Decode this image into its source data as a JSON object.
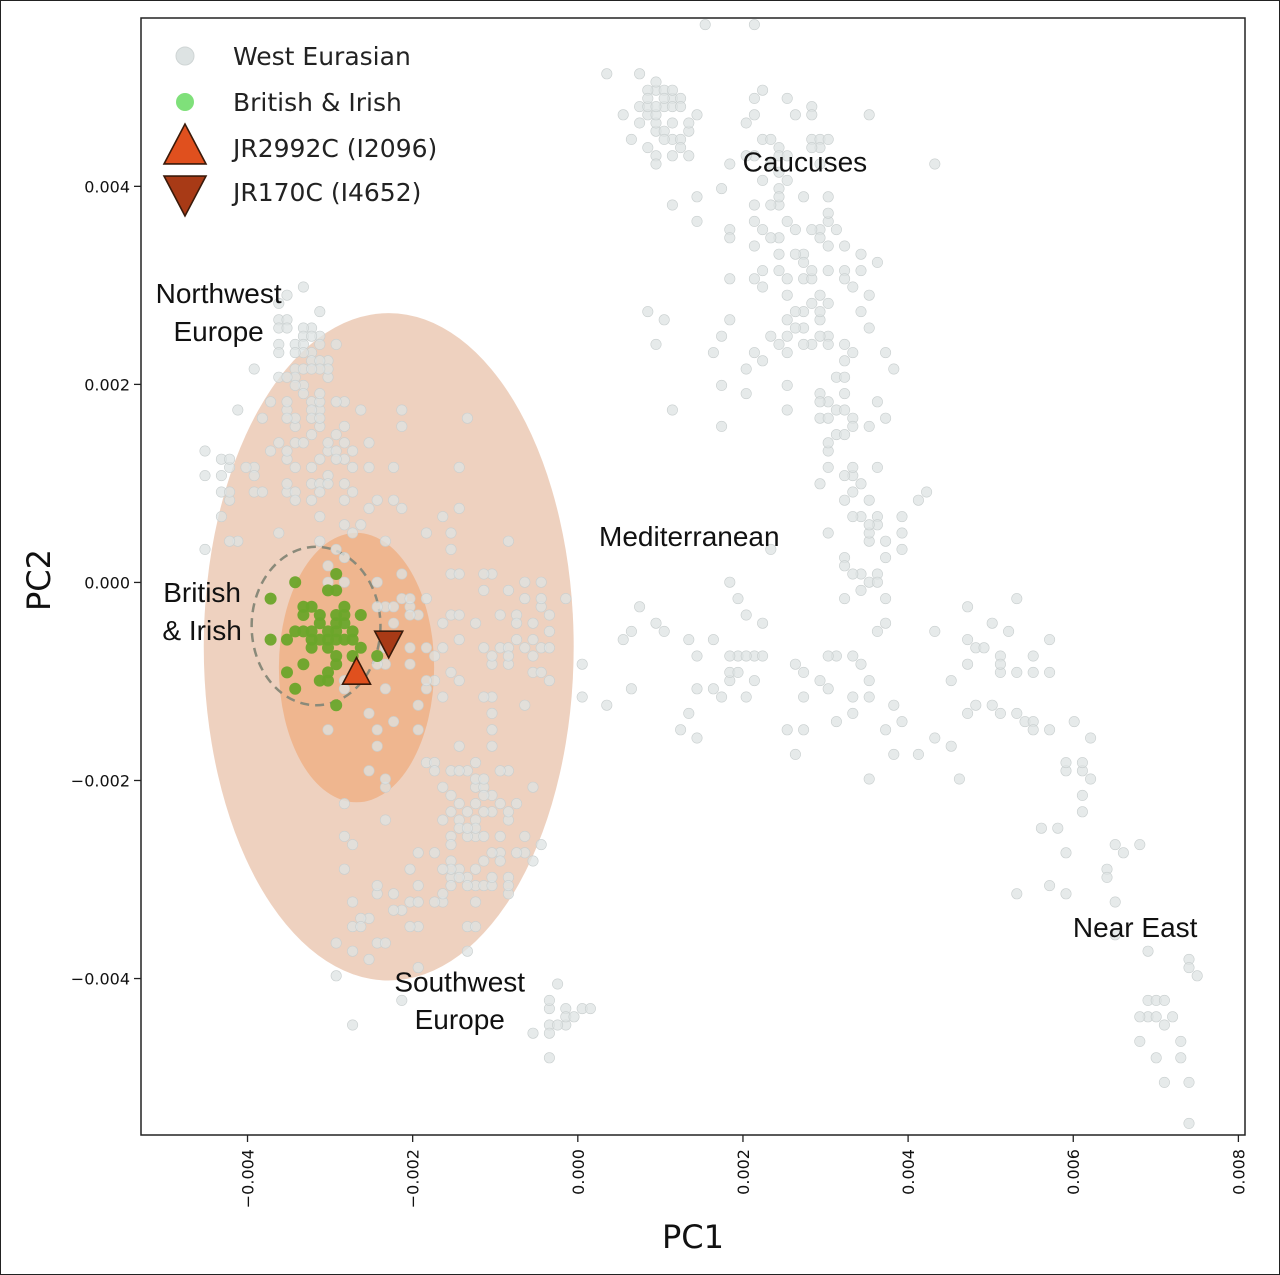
{
  "chart_data": {
    "type": "scatter",
    "xlabel": "PC1",
    "ylabel": "PC2",
    "xlim": [
      -0.00529,
      0.00808
    ],
    "ylim": [
      -0.00558,
      0.0057
    ],
    "xticks": [
      {
        "value": -0.004,
        "label": "−0.004"
      },
      {
        "value": -0.002,
        "label": "−0.002"
      },
      {
        "value": 0.0,
        "label": "0.000"
      },
      {
        "value": 0.002,
        "label": "0.002"
      },
      {
        "value": 0.004,
        "label": "0.004"
      },
      {
        "value": 0.006,
        "label": "0.006"
      },
      {
        "value": 0.008,
        "label": "0.008"
      }
    ],
    "yticks": [
      {
        "value": 0.004,
        "label": "0.004"
      },
      {
        "value": 0.002,
        "label": "0.002"
      },
      {
        "value": 0.0,
        "label": "0.000"
      },
      {
        "value": -0.002,
        "label": "−0.002"
      },
      {
        "value": -0.004,
        "label": "−0.004"
      }
    ],
    "grid": false,
    "legend_position": "top-left",
    "legend": [
      {
        "label": "West Eurasian",
        "marker": "circle",
        "color": "#dde3e3"
      },
      {
        "label": "British & Irish",
        "marker": "circle",
        "color": "#7fe07a"
      },
      {
        "label": "JR2992C (I2096)",
        "marker": "triangle-up",
        "color": "#e0501e"
      },
      {
        "label": "JR170C (I4652)",
        "marker": "triangle-down",
        "color": "#a83a16"
      }
    ],
    "annotations": [
      {
        "text": "Caucuses",
        "x": 0.00275,
        "y": 0.00415
      },
      {
        "text": "Northwest",
        "x": -0.00435,
        "y": 0.00282
      },
      {
        "text": "Europe",
        "x": -0.00435,
        "y": 0.00244
      },
      {
        "text": "Mediterranean",
        "x": 0.00135,
        "y": 0.00037
      },
      {
        "text": "British",
        "x": -0.00455,
        "y": -0.0002
      },
      {
        "text": "& Irish",
        "x": -0.00455,
        "y": -0.00058
      },
      {
        "text": "Near East",
        "x": 0.00675,
        "y": -0.00358
      },
      {
        "text": "Southwest",
        "x": -0.00143,
        "y": -0.00413
      },
      {
        "text": "Europe",
        "x": -0.00143,
        "y": -0.00451
      }
    ],
    "ellipses": [
      {
        "name": "outer",
        "cx": -0.00229,
        "cy": -0.00065,
        "rx": 0.00224,
        "ry": 0.00337,
        "color": "#e8c2aa",
        "opacity": 0.75
      },
      {
        "name": "inner",
        "cx": -0.00268,
        "cy": -0.00086,
        "rx": 0.00094,
        "ry": 0.00136,
        "color": "#f0a774",
        "opacity": 0.65
      },
      {
        "name": "british-irish",
        "cx": -0.00317,
        "cy": -0.00044,
        "rx": 0.00078,
        "ry": 0.0008,
        "color": "#8a8a7a",
        "dashed": true
      }
    ],
    "series": [
      {
        "name": "West Eurasian",
        "color": "#dde3e3",
        "clusters": [
          {
            "cx": -0.0033,
            "cy": 0.002,
            "sx": 0.00022,
            "sy": 0.0005,
            "n": 80
          },
          {
            "cx": -0.0042,
            "cy": 0.001,
            "sx": 0.00025,
            "sy": 0.00025,
            "n": 22
          },
          {
            "cx": -0.0029,
            "cy": 0.0009,
            "sx": 0.00035,
            "sy": 0.0004,
            "n": 40
          },
          {
            "cx": -0.002,
            "cy": -0.0008,
            "sx": 0.0005,
            "sy": 0.0008,
            "n": 70
          },
          {
            "cx": -0.0013,
            "cy": -0.0026,
            "sx": 0.00035,
            "sy": 0.0004,
            "n": 90
          },
          {
            "cx": -0.0009,
            "cy": -0.0006,
            "sx": 0.0004,
            "sy": 0.0006,
            "n": 45
          },
          {
            "cx": -0.0025,
            "cy": -0.0033,
            "sx": 0.0003,
            "sy": 0.0005,
            "n": 30
          },
          {
            "cx": -0.0003,
            "cy": -0.0044,
            "sx": 0.0002,
            "sy": 0.0002,
            "n": 16
          },
          {
            "cx": 0.001,
            "cy": 0.00465,
            "sx": 0.00025,
            "sy": 0.00025,
            "n": 40
          },
          {
            "cx": 0.0023,
            "cy": 0.0046,
            "sx": 0.0005,
            "sy": 0.0004,
            "n": 30
          },
          {
            "cx": 0.0026,
            "cy": 0.0035,
            "sx": 0.00045,
            "sy": 0.0004,
            "n": 45
          },
          {
            "cx": 0.0028,
            "cy": 0.0025,
            "sx": 0.00035,
            "sy": 0.0005,
            "n": 40
          },
          {
            "cx": 0.0033,
            "cy": 0.0016,
            "sx": 0.0003,
            "sy": 0.0004,
            "n": 25
          },
          {
            "cx": 0.0036,
            "cy": 0.0005,
            "sx": 0.0003,
            "sy": 0.0004,
            "n": 35
          },
          {
            "cx": 0.0015,
            "cy": -0.0008,
            "sx": 0.0009,
            "sy": 0.0004,
            "n": 40
          },
          {
            "cx": 0.0035,
            "cy": -0.0011,
            "sx": 0.0007,
            "sy": 0.0005,
            "n": 25
          },
          {
            "cx": 0.005,
            "cy": -0.001,
            "sx": 0.0005,
            "sy": 0.0004,
            "n": 25
          },
          {
            "cx": 0.0058,
            "cy": -0.0019,
            "sx": 0.0003,
            "sy": 0.0004,
            "n": 18
          },
          {
            "cx": 0.0064,
            "cy": -0.0029,
            "sx": 0.0002,
            "sy": 0.0003,
            "n": 8
          },
          {
            "cx": 0.00715,
            "cy": -0.0044,
            "sx": 0.00025,
            "sy": 0.00045,
            "n": 20
          },
          {
            "cx": 0.0018,
            "cy": 0.003,
            "sx": 0.0005,
            "sy": 0.0009,
            "n": 25
          }
        ]
      },
      {
        "name": "British & Irish",
        "color": "#7fe07a",
        "clusters": [
          {
            "cx": -0.0031,
            "cy": -0.00055,
            "sx": 0.00022,
            "sy": 0.00022,
            "n": 58
          }
        ],
        "points": [
          [
            -0.0037,
            -0.0002
          ],
          [
            -0.0034,
            -0.0011
          ],
          [
            -0.0029,
            0.0001
          ],
          [
            -0.0029,
            -0.0012
          ]
        ]
      }
    ],
    "highlights": [
      {
        "name": "JR2992C (I2096)",
        "marker": "triangle-up",
        "x": -0.00268,
        "y": -0.00092,
        "color": "#e0501e"
      },
      {
        "name": "JR170C (I4652)",
        "marker": "triangle-down",
        "x": -0.00229,
        "y": -0.0006,
        "color": "#a83a16"
      }
    ]
  }
}
